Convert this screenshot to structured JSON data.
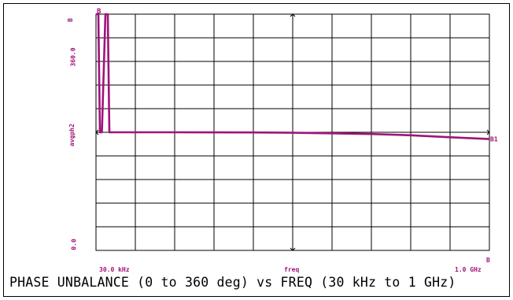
{
  "chart_data": {
    "type": "line",
    "title": "PHASE UNBALANCE (0 to 360 deg) vs FREQ (30 kHz to 1 GHz)",
    "xlabel": "freq",
    "ylabel": "avgph2",
    "x_tick_labels": {
      "start": "30.0 kHz",
      "center": "freq",
      "end": "1.0 GHz"
    },
    "y_tick_labels": {
      "top": "360.0",
      "middle": "avgph2",
      "bottom": "0.0"
    },
    "ylim": [
      0,
      360
    ],
    "grid": true,
    "markers": {
      "start_top": "B",
      "end_top": "B",
      "start_marker": "B1",
      "trace_end": "B1"
    },
    "series": [
      {
        "values": [
          {
            "x": 0.0,
            "y": 360
          },
          {
            "x": 0.6,
            "y": 360
          },
          {
            "x": 1.0,
            "y": 180
          },
          {
            "x": 1.5,
            "y": 180
          },
          {
            "x": 2.4,
            "y": 360
          },
          {
            "x": 3.0,
            "y": 360
          },
          {
            "x": 3.4,
            "y": 180
          },
          {
            "x": 20,
            "y": 180
          },
          {
            "x": 40,
            "y": 179.8
          },
          {
            "x": 50,
            "y": 179.3
          },
          {
            "x": 60,
            "y": 178.5
          },
          {
            "x": 70,
            "y": 177.3
          },
          {
            "x": 80,
            "y": 175.5
          },
          {
            "x": 90,
            "y": 172.5
          },
          {
            "x": 100,
            "y": 169.7
          }
        ]
      }
    ]
  },
  "colors": {
    "trace": "#a0137a",
    "grid": "#000000"
  }
}
